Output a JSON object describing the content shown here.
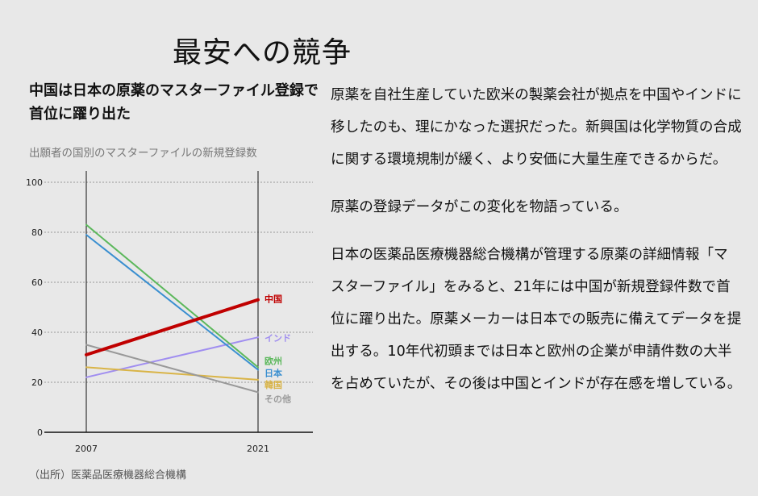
{
  "page": {
    "title": "最安への競争"
  },
  "chart_header": {
    "title": "中国は日本の原薬のマスターファイル登録で首位に躍り出た",
    "subtitle": "出願者の国別のマスターファイルの新規登録数",
    "source": "（出所）医薬品医療機器総合機構"
  },
  "chart_data": {
    "type": "line",
    "title": "中国は日本の原薬のマスターファイル登録で首位に躍り出た",
    "subtitle": "出願者の国別のマスターファイルの新規登録数",
    "x": [
      "2007",
      "2021"
    ],
    "ylim": [
      0,
      100
    ],
    "yticks": [
      0,
      20,
      40,
      60,
      80,
      100
    ],
    "grid": true,
    "legend": "inline labels at right end of lines",
    "series": [
      {
        "name": "中国",
        "values": [
          31,
          53
        ],
        "color": "#c00000",
        "bold": true
      },
      {
        "name": "インド",
        "values": [
          22,
          38
        ],
        "color": "#a08ef0"
      },
      {
        "name": "欧州",
        "values": [
          83,
          26
        ],
        "color": "#5cb85c"
      },
      {
        "name": "日本",
        "values": [
          79,
          25
        ],
        "color": "#3a8fd0"
      },
      {
        "name": "韓国",
        "values": [
          26,
          21
        ],
        "color": "#d9b447"
      },
      {
        "name": "その他",
        "values": [
          35,
          16
        ],
        "color": "#999999"
      }
    ]
  },
  "article": {
    "paragraphs": [
      "原薬を自社生産していた欧米の製薬会社が拠点を中国やインドに移したのも、理にかなった選択だった。新興国は化学物質の合成に関する環境規制が緩く、より安価に大量生産できるからだ。",
      "原薬の登録データがこの変化を物語っている。",
      "日本の医薬品医療機器総合機構が管理する原薬の詳細情報「マスターファイル」をみると、21年には中国が新規登録件数で首位に躍り出た。原薬メーカーは日本での販売に備えてデータを提出する。10年代初頭までは日本と欧州の企業が申請件数の大半を占めていたが、その後は中国とインドが存在感を増している。"
    ]
  }
}
